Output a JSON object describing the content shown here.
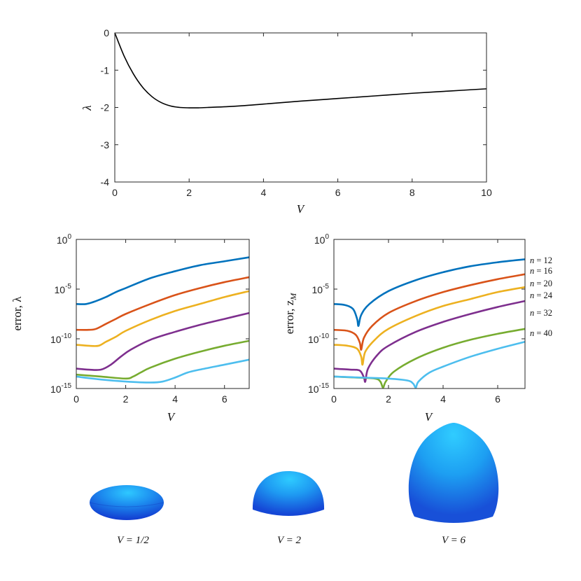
{
  "chart_data": [
    {
      "type": "line",
      "xlabel": "V",
      "ylabel": "λ",
      "xlim": [
        0,
        10
      ],
      "ylim": [
        -4,
        0
      ],
      "xticks": [
        "0",
        "2",
        "4",
        "6",
        "8",
        "10"
      ],
      "yticks": [
        "0",
        "-1",
        "-2",
        "-3",
        "-4"
      ],
      "series": [
        {
          "color": "#000000",
          "x": [
            0,
            0.25,
            0.5,
            0.75,
            1.0,
            1.25,
            1.5,
            1.75,
            2.0,
            2.25,
            2.5,
            3.0,
            3.5,
            4.0,
            5.0,
            6.0,
            7.0,
            8.0,
            9.0,
            10.0
          ],
          "y": [
            0,
            -0.62,
            -1.1,
            -1.46,
            -1.71,
            -1.87,
            -1.96,
            -2.0,
            -2.01,
            -2.01,
            -2.0,
            -1.98,
            -1.95,
            -1.91,
            -1.83,
            -1.76,
            -1.69,
            -1.62,
            -1.56,
            -1.5
          ]
        }
      ]
    },
    {
      "type": "line",
      "xlabel": "V",
      "ylabel": "error, λ",
      "yscale": "log",
      "xlim": [
        0,
        7
      ],
      "ylim_log10": [
        -15,
        0
      ],
      "xticks": [
        "0",
        "2",
        "4",
        "6"
      ],
      "ytick_base": "10",
      "ytick_exponents": [
        "0",
        "-5",
        "-10",
        "-15"
      ],
      "series": [
        {
          "color": "#0072bd",
          "x": [
            0,
            0.4,
            0.8,
            1.2,
            1.6,
            2,
            3,
            4,
            5,
            6,
            7
          ],
          "log10_y": [
            -6.5,
            -6.5,
            -6.2,
            -5.8,
            -5.3,
            -4.9,
            -3.9,
            -3.2,
            -2.6,
            -2.2,
            -1.8
          ]
        },
        {
          "color": "#d95319",
          "x": [
            0,
            0.5,
            0.8,
            1.2,
            1.6,
            2,
            3,
            4,
            5,
            6,
            7
          ],
          "log10_y": [
            -9.1,
            -9.1,
            -9.0,
            -8.5,
            -8.0,
            -7.5,
            -6.5,
            -5.6,
            -4.9,
            -4.3,
            -3.8
          ]
        },
        {
          "color": "#edb120",
          "x": [
            0,
            0.5,
            0.9,
            1.2,
            1.6,
            2,
            3,
            4,
            5,
            6,
            7
          ],
          "log10_y": [
            -10.6,
            -10.7,
            -10.7,
            -10.3,
            -9.8,
            -9.2,
            -8.1,
            -7.2,
            -6.5,
            -5.8,
            -5.2
          ]
        },
        {
          "color": "#7e2f8e",
          "x": [
            0,
            0.5,
            1.0,
            1.4,
            1.8,
            2.2,
            3,
            4,
            5,
            6,
            7
          ],
          "log10_y": [
            -13.0,
            -13.1,
            -13.1,
            -12.6,
            -11.8,
            -11.1,
            -10.1,
            -9.3,
            -8.6,
            -8.0,
            -7.4
          ]
        },
        {
          "color": "#77ac30",
          "x": [
            0,
            1.0,
            2.0,
            2.3,
            2.6,
            3,
            4,
            5,
            6,
            7
          ],
          "log10_y": [
            -13.6,
            -13.8,
            -14.0,
            -13.8,
            -13.4,
            -12.9,
            -12.0,
            -11.3,
            -10.7,
            -10.2
          ]
        },
        {
          "color": "#4dbeee",
          "x": [
            0,
            1,
            2,
            3,
            3.5,
            4,
            4.5,
            5,
            6,
            7
          ],
          "log10_y": [
            -13.8,
            -14.1,
            -14.3,
            -14.4,
            -14.3,
            -13.9,
            -13.4,
            -13.1,
            -12.6,
            -12.1
          ]
        }
      ]
    },
    {
      "type": "line",
      "xlabel": "V",
      "ylabel": "error, z",
      "ylabel_sub": "M",
      "yscale": "log",
      "xlim": [
        0,
        7
      ],
      "ylim_log10": [
        -15,
        0
      ],
      "xticks": [
        "0",
        "2",
        "4",
        "6"
      ],
      "ytick_base": "10",
      "ytick_exponents": [
        "0",
        "-5",
        "-10",
        "-15"
      ],
      "series": [
        {
          "name": "n = 12",
          "color": "#0072bd",
          "x": [
            0,
            0.4,
            0.7,
            0.85,
            0.9,
            1.0,
            1.3,
            2,
            3,
            4,
            5,
            6,
            7
          ],
          "log10_y": [
            -6.5,
            -6.6,
            -7.0,
            -8.0,
            -8.7,
            -7.6,
            -6.5,
            -5.2,
            -4.1,
            -3.3,
            -2.7,
            -2.3,
            -2.0
          ]
        },
        {
          "name": "n = 16",
          "color": "#d95319",
          "x": [
            0,
            0.5,
            0.8,
            0.95,
            1.0,
            1.1,
            1.4,
            2,
            3,
            4,
            5,
            6,
            7
          ],
          "log10_y": [
            -9.1,
            -9.2,
            -9.6,
            -10.4,
            -11.1,
            -9.9,
            -8.7,
            -7.4,
            -6.2,
            -5.3,
            -4.6,
            -4.0,
            -3.5
          ]
        },
        {
          "name": "n = 20",
          "color": "#edb120",
          "x": [
            0,
            0.5,
            0.85,
            1.0,
            1.05,
            1.15,
            1.5,
            2,
            3,
            4,
            5,
            6,
            7
          ],
          "log10_y": [
            -10.6,
            -10.7,
            -11.0,
            -11.8,
            -12.6,
            -11.3,
            -10.1,
            -9.0,
            -7.7,
            -6.7,
            -6.0,
            -5.3,
            -4.8
          ]
        },
        {
          "name": "n = 24",
          "color": "#7e2f8e",
          "x": [
            0,
            0.6,
            0.95,
            1.1,
            1.15,
            1.25,
            1.6,
            2,
            3,
            4,
            5,
            6,
            7
          ],
          "log10_y": [
            -13.0,
            -13.1,
            -13.2,
            -13.9,
            -14.3,
            -13.0,
            -11.6,
            -10.7,
            -9.3,
            -8.3,
            -7.5,
            -6.8,
            -6.2
          ]
        },
        {
          "name": "n = 32",
          "color": "#77ac30",
          "x": [
            0,
            0.8,
            1.5,
            1.7,
            1.8,
            1.9,
            2.2,
            3,
            4,
            5,
            6,
            7
          ],
          "log10_y": [
            -13.8,
            -13.9,
            -14.0,
            -14.3,
            -14.9,
            -14.3,
            -13.3,
            -12.0,
            -10.9,
            -10.1,
            -9.5,
            -9.0
          ]
        },
        {
          "name": "n = 40",
          "color": "#4dbeee",
          "x": [
            0,
            1,
            2,
            2.7,
            2.9,
            3.0,
            3.1,
            3.5,
            4,
            5,
            6,
            7
          ],
          "log10_y": [
            -13.8,
            -13.9,
            -14.0,
            -14.2,
            -14.5,
            -14.9,
            -14.3,
            -13.4,
            -12.8,
            -11.8,
            -11.0,
            -10.3
          ]
        }
      ]
    }
  ],
  "captions": [
    "V = 1/2",
    "V = 2",
    "V = 6"
  ],
  "colors": {
    "drop_light": "#29c7ff",
    "drop_mid": "#1e8cf0",
    "drop_dark": "#1442d6"
  }
}
